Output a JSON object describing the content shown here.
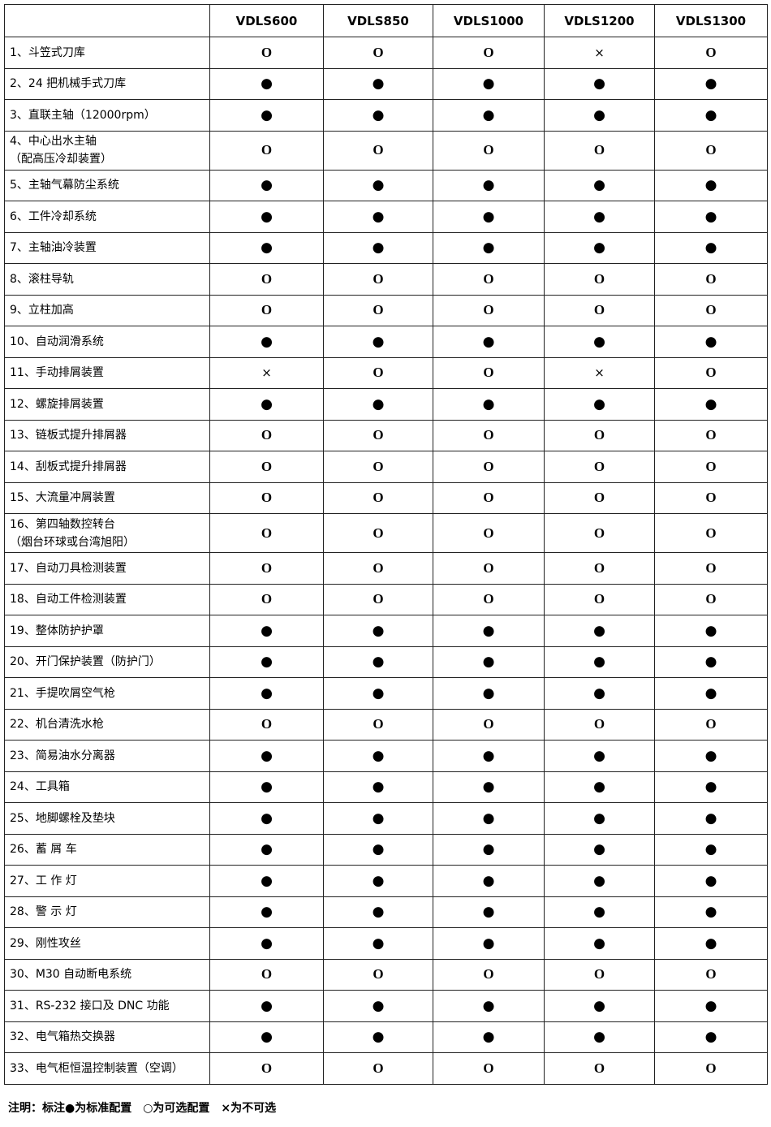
{
  "table": {
    "header": [
      "VDLS600",
      "VDLS850",
      "VDLS1000",
      "VDLS1200",
      "VDLS1300"
    ],
    "rows": [
      [
        "1、斗笠式刀库",
        "O",
        "O",
        "O",
        "×",
        "O"
      ],
      [
        "2、24 把机械手式刀库",
        "●",
        "●",
        "●",
        "●",
        "●"
      ],
      [
        "3、直联主轴（12000rpm）",
        "●",
        "●",
        "●",
        "●",
        "●"
      ],
      [
        "4、中心出水主轴\n（配高压冷却装置）",
        "O",
        "O",
        "O",
        "O",
        "O"
      ],
      [
        "5、主轴气幕防尘系统",
        "●",
        "●",
        "●",
        "●",
        "●"
      ],
      [
        "6、工件冷却系统",
        "●",
        "●",
        "●",
        "●",
        "●"
      ],
      [
        "7、主轴油冷装置",
        "●",
        "●",
        "●",
        "●",
        "●"
      ],
      [
        "8、滚柱导轨",
        "O",
        "O",
        "O",
        "O",
        "O"
      ],
      [
        "9、立柱加高",
        "O",
        "O",
        "O",
        "O",
        "O"
      ],
      [
        "10、自动润滑系统",
        "●",
        "●",
        "●",
        "●",
        "●"
      ],
      [
        "11、手动排屑装置",
        "×",
        "O",
        "O",
        "×",
        "O"
      ],
      [
        "12、螺旋排屑装置",
        "●",
        "●",
        "●",
        "●",
        "●"
      ],
      [
        "13、链板式提升排屑器",
        "O",
        "O",
        "O",
        "O",
        "O"
      ],
      [
        "14、刮板式提升排屑器",
        "O",
        "O",
        "O",
        "O",
        "O"
      ],
      [
        "15、大流量冲屑装置",
        "O",
        "O",
        "O",
        "O",
        "O"
      ],
      [
        "16、第四轴数控转台\n（烟台环球或台湾旭阳）",
        "O",
        "O",
        "O",
        "O",
        "O"
      ],
      [
        "17、自动刀具检测装置",
        "O",
        "O",
        "O",
        "O",
        "O"
      ],
      [
        "18、自动工件检测装置",
        "O",
        "O",
        "O",
        "O",
        "O"
      ],
      [
        "19、整体防护护罩",
        "●",
        "●",
        "●",
        "●",
        "●"
      ],
      [
        "20、开门保护装置（防护门）",
        "●",
        "●",
        "●",
        "●",
        "●"
      ],
      [
        "21、手提吹屑空气枪",
        "●",
        "●",
        "●",
        "●",
        "●"
      ],
      [
        "22、机台清洗水枪",
        "O",
        "O",
        "O",
        "O",
        "O"
      ],
      [
        "23、简易油水分离器",
        "●",
        "●",
        "●",
        "●",
        "●"
      ],
      [
        "24、工具箱",
        "●",
        "●",
        "●",
        "●",
        "●"
      ],
      [
        "25、地脚螺栓及垫块",
        "●",
        "●",
        "●",
        "●",
        "●"
      ],
      [
        "26、蓄 屑 车",
        "●",
        "●",
        "●",
        "●",
        "●"
      ],
      [
        "27、工 作 灯",
        "●",
        "●",
        "●",
        "●",
        "●"
      ],
      [
        "28、警 示 灯",
        "●",
        "●",
        "●",
        "●",
        "●"
      ],
      [
        "29、刚性攻丝",
        "●",
        "●",
        "●",
        "●",
        "●"
      ],
      [
        "30、M30 自动断电系统",
        "O",
        "O",
        "O",
        "O",
        "O"
      ],
      [
        "31、RS-232 接口及 DNC 功能",
        "●",
        "●",
        "●",
        "●",
        "●"
      ],
      [
        "32、电气箱热交换器",
        "●",
        "●",
        "●",
        "●",
        "●"
      ],
      [
        "33、电气柜恒温控制装置（空调）",
        "O",
        "O",
        "O",
        "O",
        "O"
      ]
    ]
  },
  "note": "注明：标注●为标准配置　○为可选配置　×为不可选"
}
